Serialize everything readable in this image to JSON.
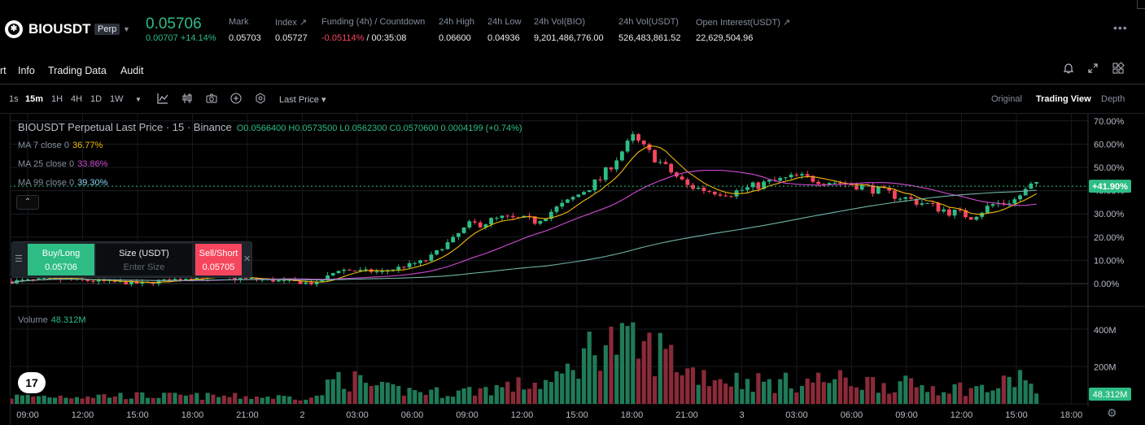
{
  "ticker": {
    "symbol": "BIOUSDT",
    "badge": "Perp",
    "price": "0.05706",
    "change": "0.00707 +14.14%",
    "stats": [
      {
        "label": "Mark",
        "value": "0.05703",
        "neg": false
      },
      {
        "label": "Index ↗",
        "value": "0.05727",
        "neg": false
      },
      {
        "label": "Funding (4h) / Countdown",
        "value": "-0.05114%",
        "value2": " / 00:35:08",
        "neg": true
      },
      {
        "label": "24h High",
        "value": "0.06600",
        "neg": false
      },
      {
        "label": "24h Low",
        "value": "0.04936",
        "neg": false
      },
      {
        "label": "24h Vol(BIO)",
        "value": "9,201,486,776.00",
        "neg": false
      },
      {
        "label": "24h Vol(USDT)",
        "value": "526,483,861.52",
        "neg": false
      },
      {
        "label": "Open Interest(USDT) ↗",
        "value": "22,629,504.96",
        "neg": false
      }
    ],
    "more_icon": "more-dots-icon"
  },
  "tabs": [
    "rt",
    "Info",
    "Trading Data",
    "Audit"
  ],
  "tab_icons": [
    "bell-icon",
    "expand-icon",
    "layout-grid-icon"
  ],
  "toolbar": {
    "intervals": [
      "1s",
      "15m",
      "1H",
      "4H",
      "1D",
      "1W"
    ],
    "active_interval": "15m",
    "price_type": "Last Price ▾",
    "icons": [
      "indicator-icon",
      "candle-type-icon",
      "camera-icon",
      "plus-circle-icon",
      "settings-hex-icon"
    ],
    "views": [
      "Original",
      "Trading View",
      "Depth"
    ],
    "active_view": "Trading View"
  },
  "legend": {
    "title": "BIOUSDT Perpetual Last Price · 15 · Binance",
    "ohlc": "O0.0566400 H0.0573500 L0.0562300 C0.0570600 0.0004199 (+0.74%)",
    "ma7": {
      "label": "MA 7 close 0",
      "value": "36.77%",
      "color": "#f0b90b"
    },
    "ma25": {
      "label": "MA 25 close 0",
      "value": "33.86%",
      "color": "#d04bd6"
    },
    "ma99": {
      "label": "MA 99 close 0",
      "value": "39.30%",
      "color": "#8ad8f4"
    },
    "collapse": "⌃"
  },
  "order_widget": {
    "buy_label": "Buy/Long",
    "buy_price": "0.05706",
    "size_label": "Size (USDT)",
    "size_placeholder": "Enter Size",
    "sell_label": "Sell/Short",
    "sell_price": "0.05705"
  },
  "volume_legend": {
    "label": "Volume",
    "value": "48.312M"
  },
  "chart_data": {
    "type": "candlestick",
    "price_axis_ticks": [
      "70.00%",
      "60.00%",
      "50.00%",
      "40.00%",
      "30.00%",
      "20.00%",
      "10.00%",
      "0.00%"
    ],
    "current_price_label": "+41.90%",
    "volume_axis_ticks": [
      "400M",
      "200M"
    ],
    "current_volume_label": "48.312M",
    "x_ticks": [
      "09:00",
      "12:00",
      "15:00",
      "18:00",
      "21:00",
      "2",
      "03:00",
      "06:00",
      "09:00",
      "12:00",
      "15:00",
      "18:00",
      "21:00",
      "3",
      "03:00",
      "06:00",
      "09:00",
      "12:00",
      "15:00",
      "18:00"
    ],
    "anchors_pct": [
      [
        0,
        1
      ],
      [
        8,
        2
      ],
      [
        16,
        1
      ],
      [
        24,
        0
      ],
      [
        34,
        3
      ],
      [
        44,
        2
      ],
      [
        56,
        0
      ],
      [
        60,
        6
      ],
      [
        68,
        5
      ],
      [
        76,
        10
      ],
      [
        84,
        25
      ],
      [
        90,
        28
      ],
      [
        96,
        27
      ],
      [
        102,
        35
      ],
      [
        108,
        45
      ],
      [
        114,
        63
      ],
      [
        118,
        54
      ],
      [
        124,
        42
      ],
      [
        128,
        40
      ],
      [
        132,
        39
      ],
      [
        138,
        43
      ],
      [
        144,
        46
      ],
      [
        150,
        44
      ],
      [
        156,
        42
      ],
      [
        162,
        38
      ],
      [
        168,
        34
      ],
      [
        172,
        31
      ],
      [
        176,
        29
      ],
      [
        180,
        34
      ],
      [
        184,
        36
      ],
      [
        187,
        42
      ]
    ],
    "vol_anchors_m": [
      [
        0,
        40
      ],
      [
        20,
        45
      ],
      [
        40,
        40
      ],
      [
        56,
        35
      ],
      [
        60,
        150
      ],
      [
        68,
        80
      ],
      [
        80,
        60
      ],
      [
        90,
        90
      ],
      [
        100,
        120
      ],
      [
        108,
        350
      ],
      [
        114,
        300
      ],
      [
        120,
        280
      ],
      [
        124,
        180
      ],
      [
        130,
        140
      ],
      [
        140,
        110
      ],
      [
        150,
        130
      ],
      [
        160,
        110
      ],
      [
        170,
        90
      ],
      [
        180,
        80
      ],
      [
        186,
        160
      ],
      [
        188,
        48
      ]
    ]
  }
}
